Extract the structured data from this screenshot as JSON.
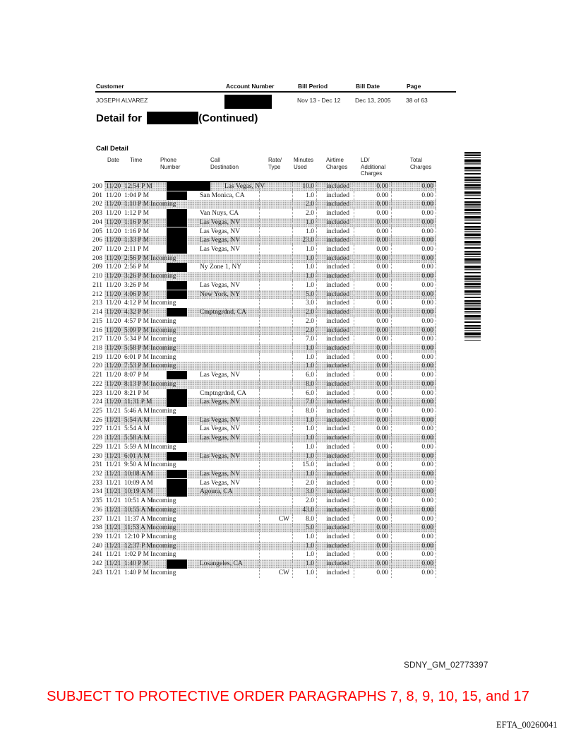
{
  "account_header": {
    "labels": {
      "customer": "Customer",
      "account_number": "Account Number",
      "bill_period": "Bill Period",
      "bill_date": "Bill Date",
      "page": "Page"
    },
    "values": {
      "customer": "JOSEPH ALVAREZ",
      "account_number_redacted": true,
      "bill_period": "Nov 13 - Dec 12",
      "bill_date": "Dec 13, 2005",
      "page": "38 of 63"
    }
  },
  "detail_title": {
    "prefix": "Detail for",
    "name_redacted": true,
    "suffix": "(Continued)"
  },
  "section_title": "Call Detail",
  "call_table": {
    "headers": [
      [
        "Date"
      ],
      [
        "Time"
      ],
      [
        "Phone",
        "Number"
      ],
      [
        "Call",
        "Destination"
      ],
      [
        "Rate/",
        "Type"
      ],
      [
        "Minutes",
        "Used"
      ],
      [
        "Airtime",
        "Charges"
      ],
      [
        "LD/",
        "Additional",
        "Charges"
      ],
      [
        "Total",
        "Charges"
      ]
    ],
    "phone_redaction_code_normal": "R",
    "phone_redaction_code_wide": "RW",
    "rows": [
      [
        "200",
        "11/20",
        "12:54 P M",
        "RW",
        "Las Vegas, NV",
        "",
        "10.0",
        "included",
        "0.00",
        "0.00"
      ],
      [
        "201",
        "11/20",
        "1:04 P M",
        "R",
        "San Monica, CA",
        "",
        "1.0",
        "included",
        "0.00",
        "0.00"
      ],
      [
        "202",
        "11/20",
        "1:10 P M",
        "Incoming",
        "",
        "",
        "2.0",
        "included",
        "0.00",
        "0.00"
      ],
      [
        "203",
        "11/20",
        "1:12 P M",
        "R",
        "Van Nuys, CA",
        "",
        "2.0",
        "included",
        "0.00",
        "0.00"
      ],
      [
        "204",
        "11/20",
        "1:16 P M",
        "R",
        "Las Vegas, NV",
        "",
        "1.0",
        "included",
        "0.00",
        "0.00"
      ],
      [
        "205",
        "11/20",
        "1:16 P M",
        "R",
        "Las Vegas, NV",
        "",
        "1.0",
        "included",
        "0.00",
        "0.00"
      ],
      [
        "206",
        "11/20",
        "1:33 P M",
        "R",
        "Las Vegas, NV",
        "",
        "23.0",
        "included",
        "0.00",
        "0.00"
      ],
      [
        "207",
        "11/20",
        "2:11 P M",
        "R",
        "Las Vegas, NV",
        "",
        "1.0",
        "included",
        "0.00",
        "0.00"
      ],
      [
        "208",
        "11/20",
        "2:56 P M",
        "Incoming",
        "",
        "",
        "1.0",
        "included",
        "0.00",
        "0.00"
      ],
      [
        "209",
        "11/20",
        "2:56 P M",
        "R",
        "Ny Zone 1, NY",
        "",
        "1.0",
        "included",
        "0.00",
        "0.00"
      ],
      [
        "210",
        "11/20",
        "3:26 P M",
        "Incoming",
        "",
        "",
        "1.0",
        "included",
        "0.00",
        "0.00"
      ],
      [
        "211",
        "11/20",
        "3:26 P M",
        "R",
        "Las Vegas, NV",
        "",
        "1.0",
        "included",
        "0.00",
        "0.00"
      ],
      [
        "212",
        "11/20",
        "4:06 P M",
        "R",
        "New York, NY",
        "",
        "5.0",
        "included",
        "0.00",
        "0.00"
      ],
      [
        "213",
        "11/20",
        "4:12 P M",
        "Incoming",
        "",
        "",
        "3.0",
        "included",
        "0.00",
        "0.00"
      ],
      [
        "214",
        "11/20",
        "4:32 P M",
        "R",
        "Cmptngrdnd, CA",
        "",
        "2.0",
        "included",
        "0.00",
        "0.00"
      ],
      [
        "215",
        "11/20",
        "4:57 P M",
        "Incoming",
        "",
        "",
        "2.0",
        "included",
        "0.00",
        "0.00"
      ],
      [
        "216",
        "11/20",
        "5:09 P M",
        "Incoming",
        "",
        "",
        "2.0",
        "included",
        "0.00",
        "0.00"
      ],
      [
        "217",
        "11/20",
        "5:34 P M",
        "Incoming",
        "",
        "",
        "7.0",
        "included",
        "0.00",
        "0.00"
      ],
      [
        "218",
        "11/20",
        "5:58 P M",
        "Incoming",
        "",
        "",
        "1.0",
        "included",
        "0.00",
        "0.00"
      ],
      [
        "219",
        "11/20",
        "6:01 P M",
        "Incoming",
        "",
        "",
        "1.0",
        "included",
        "0.00",
        "0.00"
      ],
      [
        "220",
        "11/20",
        "7:53 P M",
        "Incoming",
        "",
        "",
        "1.0",
        "included",
        "0.00",
        "0.00"
      ],
      [
        "221",
        "11/20",
        "8:07 P M",
        "R",
        "Las Vegas, NV",
        "",
        "6.0",
        "included",
        "0.00",
        "0.00"
      ],
      [
        "222",
        "11/20",
        "8:13 P M",
        "Incoming",
        "",
        "",
        "8.0",
        "included",
        "0.00",
        "0.00"
      ],
      [
        "223",
        "11/20",
        "8:21 P M",
        "R",
        "Cmptngrdnd, CA",
        "",
        "6.0",
        "included",
        "0.00",
        "0.00"
      ],
      [
        "224",
        "11/20",
        "11:31 P M",
        "R",
        "Las Vegas, NV",
        "",
        "7.0",
        "included",
        "0.00",
        "0.00"
      ],
      [
        "225",
        "11/21",
        "5:46 A M",
        "Incoming",
        "",
        "",
        "8.0",
        "included",
        "0.00",
        "0.00"
      ],
      [
        "226",
        "11/21",
        "5:54 A M",
        "R",
        "Las Vegas, NV",
        "",
        "1.0",
        "included",
        "0.00",
        "0.00"
      ],
      [
        "227",
        "11/21",
        "5:54 A M",
        "R",
        "Las Vegas, NV",
        "",
        "1.0",
        "included",
        "0.00",
        "0.00"
      ],
      [
        "228",
        "11/21",
        "5:58 A M",
        "R",
        "Las Vegas, NV",
        "",
        "1.0",
        "included",
        "0.00",
        "0.00"
      ],
      [
        "229",
        "11/21",
        "5:59 A M",
        "Incoming",
        "",
        "",
        "1.0",
        "included",
        "0.00",
        "0.00"
      ],
      [
        "230",
        "11/21",
        "6:01 A M",
        "R",
        "Las Vegas, NV",
        "",
        "1.0",
        "included",
        "0.00",
        "0.00"
      ],
      [
        "231",
        "11/21",
        "9:50 A M",
        "Incoming",
        "",
        "",
        "15.0",
        "included",
        "0.00",
        "0.00"
      ],
      [
        "232",
        "11/21",
        "10:08 A M",
        "R",
        "Las Vegas, NV",
        "",
        "1.0",
        "included",
        "0.00",
        "0.00"
      ],
      [
        "233",
        "11/21",
        "10:09 A M",
        "R",
        "Las Vegas, NV",
        "",
        "2.0",
        "included",
        "0.00",
        "0.00"
      ],
      [
        "234",
        "11/21",
        "10:19 A M",
        "R",
        "Agoura, CA",
        "",
        "3.0",
        "included",
        "0.00",
        "0.00"
      ],
      [
        "235",
        "11/21",
        "10:51 A M",
        "Incoming",
        "",
        "",
        "2.0",
        "included",
        "0.00",
        "0.00"
      ],
      [
        "236",
        "11/21",
        "10:55 A M",
        "Incoming",
        "",
        "",
        "43.0",
        "included",
        "0.00",
        "0.00"
      ],
      [
        "237",
        "11/21",
        "11:37 A M",
        "Incoming",
        "",
        "CW",
        "8.0",
        "included",
        "0.00",
        "0.00"
      ],
      [
        "238",
        "11/21",
        "11:53 A M",
        "Incoming",
        "",
        "",
        "5.0",
        "included",
        "0.00",
        "0.00"
      ],
      [
        "239",
        "11/21",
        "12:10 P M",
        "Incoming",
        "",
        "",
        "1.0",
        "included",
        "0.00",
        "0.00"
      ],
      [
        "240",
        "11/21",
        "12:37 P M",
        "Incoming",
        "",
        "",
        "1.0",
        "included",
        "0.00",
        "0.00"
      ],
      [
        "241",
        "11/21",
        "1:02 P M",
        "Incoming",
        "",
        "",
        "1.0",
        "included",
        "0.00",
        "0.00"
      ],
      [
        "242",
        "11/21",
        "1:40 P M",
        "R",
        "Losangeles, CA",
        "",
        "1.0",
        "included",
        "0.00",
        "0.00"
      ],
      [
        "243",
        "11/21",
        "1:40 P M",
        "Incoming",
        "",
        "CW",
        "1.0",
        "included",
        "0.00",
        "0.00"
      ]
    ]
  },
  "barcode": {
    "name": "vertical-document-barcode"
  },
  "footer": {
    "bates_sdny": "SDNY_GM_02773397",
    "protective_order": "SUBJECT TO PROTECTIVE ORDER PARAGRAPHS 7, 8, 9, 10, 15, and 17",
    "bates_efta": "EFTA_00260041"
  },
  "colors": {
    "protective_order_red": "#ff0000",
    "redaction_black": "#000000",
    "row_shade_gray": "#ececec"
  }
}
